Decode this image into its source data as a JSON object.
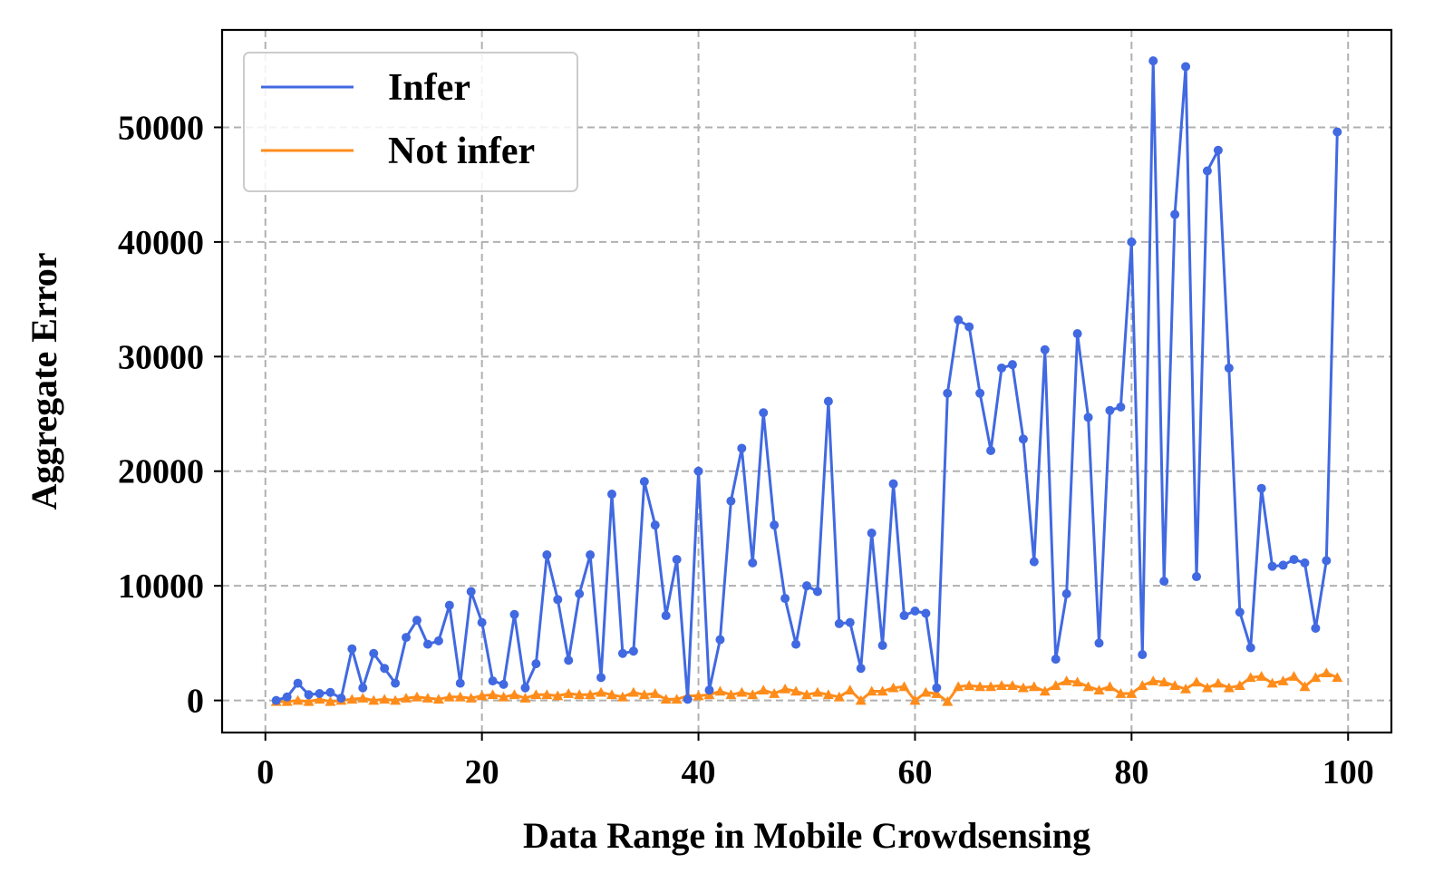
{
  "chart_data": {
    "type": "line",
    "title": "",
    "xlabel": "Data Range in Mobile Crowdsensing",
    "ylabel": "Aggregate Error",
    "xlim": [
      -4,
      104
    ],
    "ylim": [
      -2800,
      58500
    ],
    "xticks": [
      0,
      20,
      40,
      60,
      80,
      100
    ],
    "yticks": [
      0,
      10000,
      20000,
      30000,
      40000,
      50000
    ],
    "xtick_labels": [
      "0",
      "20",
      "40",
      "60",
      "80",
      "100"
    ],
    "ytick_labels": [
      "0",
      "10000",
      "20000",
      "30000",
      "40000",
      "50000"
    ],
    "grid": true,
    "legend_position": "top-left",
    "x": [
      1,
      2,
      3,
      4,
      5,
      6,
      7,
      8,
      9,
      10,
      11,
      12,
      13,
      14,
      15,
      16,
      17,
      18,
      19,
      20,
      21,
      22,
      23,
      24,
      25,
      26,
      27,
      28,
      29,
      30,
      31,
      32,
      33,
      34,
      35,
      36,
      37,
      38,
      39,
      40,
      41,
      42,
      43,
      44,
      45,
      46,
      47,
      48,
      49,
      50,
      51,
      52,
      53,
      54,
      55,
      56,
      57,
      58,
      59,
      60,
      61,
      62,
      63,
      64,
      65,
      66,
      67,
      68,
      69,
      70,
      71,
      72,
      73,
      74,
      75,
      76,
      77,
      78,
      79,
      80,
      81,
      82,
      83,
      84,
      85,
      86,
      87,
      88,
      89,
      90,
      91,
      92,
      93,
      94,
      95,
      96,
      97,
      98,
      99
    ],
    "series": [
      {
        "name": "Infer",
        "color": "#4169e1",
        "marker": "circle",
        "values": [
          0,
          300,
          1500,
          500,
          600,
          700,
          200,
          4500,
          1100,
          4100,
          2800,
          1500,
          5500,
          7000,
          4900,
          5200,
          8300,
          1500,
          9500,
          6800,
          1700,
          1400,
          7500,
          1100,
          3200,
          12700,
          8800,
          3500,
          9300,
          12700,
          2000,
          18000,
          4100,
          4300,
          19100,
          15300,
          7400,
          12300,
          100,
          20000,
          900,
          5300,
          17400,
          22000,
          12000,
          25100,
          15300,
          8900,
          4900,
          10000,
          9500,
          26100,
          6700,
          6800,
          2800,
          14600,
          4800,
          18900,
          7400,
          7800,
          7600,
          1100,
          26800,
          33200,
          32600,
          26800,
          21800,
          29000,
          29300,
          22800,
          12100,
          30600,
          3600,
          9300,
          32000,
          24700,
          5000,
          25300,
          25600,
          40000,
          4000,
          55800,
          10400,
          42400,
          55300,
          10800,
          46200,
          48000,
          29000,
          7700,
          4600,
          18500,
          11700,
          11800,
          12300,
          12000,
          6300,
          12200,
          49600
        ]
      },
      {
        "name": "Not infer",
        "color": "#ff8c1a",
        "marker": "triangle",
        "values": [
          -100,
          -100,
          0,
          -100,
          100,
          -100,
          0,
          100,
          200,
          0,
          100,
          0,
          200,
          300,
          200,
          100,
          300,
          300,
          200,
          400,
          500,
          300,
          500,
          200,
          500,
          500,
          400,
          600,
          500,
          500,
          700,
          500,
          300,
          700,
          500,
          600,
          100,
          100,
          400,
          400,
          500,
          800,
          500,
          700,
          500,
          900,
          600,
          1000,
          800,
          500,
          700,
          500,
          300,
          900,
          0,
          800,
          800,
          1100,
          1200,
          0,
          700,
          600,
          -100,
          1200,
          1300,
          1200,
          1200,
          1300,
          1300,
          1100,
          1200,
          800,
          1300,
          1700,
          1600,
          1200,
          900,
          1200,
          600,
          600,
          1300,
          1700,
          1600,
          1300,
          1000,
          1600,
          1100,
          1500,
          1100,
          1300,
          2000,
          2100,
          1500,
          1700,
          2100,
          1200,
          2000,
          2400,
          2000
        ]
      }
    ]
  }
}
